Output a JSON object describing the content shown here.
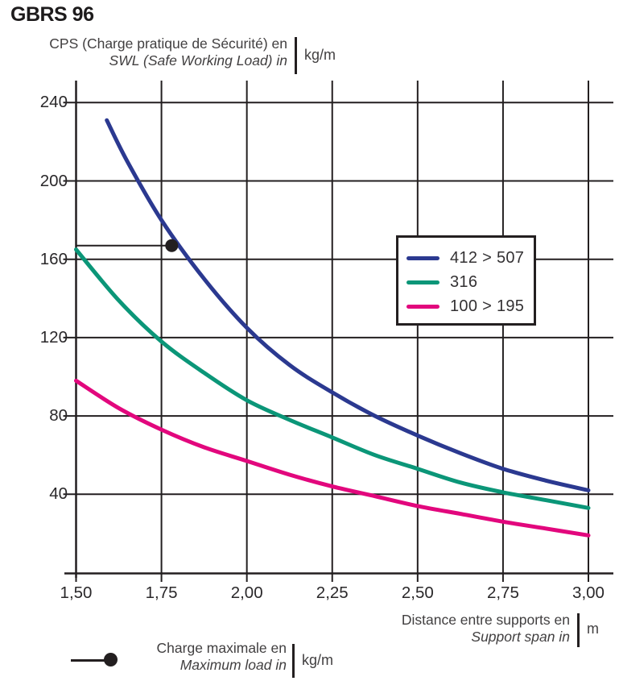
{
  "title": "GBRS 96",
  "y_axis_title": {
    "line1": "CPS (Charge pratique de Sécurité) en",
    "line2": "SWL (Safe Working Load) in",
    "unit": "kg/m"
  },
  "x_axis_title": {
    "line1": "Distance entre supports en",
    "line2": "Support span in",
    "unit": "m"
  },
  "marker_legend": {
    "line1": "Charge maximale en",
    "line2": "Maximum load in",
    "unit": "kg/m"
  },
  "colors": {
    "line_black": "#231f20",
    "series_blue": "#2b3990",
    "series_green": "#0b9678",
    "series_pink": "#e2077d"
  },
  "chart_data": {
    "type": "line",
    "title": "GBRS 96",
    "xlabel": "Distance entre supports en / Support span in (m)",
    "ylabel": "CPS (Charge pratique de Sécurité) / SWL (Safe Working Load) (kg/m)",
    "xlim": [
      1.5,
      3.0
    ],
    "ylim": [
      0,
      252
    ],
    "grid": true,
    "legend_position": "center-right",
    "x_ticks": [
      {
        "value": 1.5,
        "label": "1,50"
      },
      {
        "value": 1.75,
        "label": "1,75"
      },
      {
        "value": 2.0,
        "label": "2,00"
      },
      {
        "value": 2.25,
        "label": "2,25"
      },
      {
        "value": 2.5,
        "label": "2,50"
      },
      {
        "value": 2.75,
        "label": "2,75"
      },
      {
        "value": 3.0,
        "label": "3,00"
      }
    ],
    "y_ticks": [
      {
        "value": 240,
        "label": "240"
      },
      {
        "value": 200,
        "label": "200"
      },
      {
        "value": 160,
        "label": "160"
      },
      {
        "value": 120,
        "label": "120"
      },
      {
        "value": 80,
        "label": "80"
      },
      {
        "value": 40,
        "label": "40"
      }
    ],
    "series": [
      {
        "name": "412 > 507",
        "color": "#2b3990",
        "points": [
          [
            1.59,
            231
          ],
          [
            1.65,
            210
          ],
          [
            1.75,
            180
          ],
          [
            1.875,
            150
          ],
          [
            2.0,
            125
          ],
          [
            2.125,
            106
          ],
          [
            2.25,
            92
          ],
          [
            2.375,
            80
          ],
          [
            2.5,
            70
          ],
          [
            2.625,
            61
          ],
          [
            2.75,
            53
          ],
          [
            2.875,
            47
          ],
          [
            3.0,
            42
          ]
        ]
      },
      {
        "name": "316",
        "color": "#0b9678",
        "points": [
          [
            1.5,
            165
          ],
          [
            1.625,
            139
          ],
          [
            1.75,
            118
          ],
          [
            1.875,
            102
          ],
          [
            2.0,
            88
          ],
          [
            2.125,
            78
          ],
          [
            2.25,
            69
          ],
          [
            2.375,
            60
          ],
          [
            2.5,
            53
          ],
          [
            2.625,
            46
          ],
          [
            2.75,
            41
          ],
          [
            2.875,
            37
          ],
          [
            3.0,
            33
          ]
        ]
      },
      {
        "name": "100 > 195",
        "color": "#e2077d",
        "points": [
          [
            1.5,
            98
          ],
          [
            1.625,
            84
          ],
          [
            1.75,
            73
          ],
          [
            1.875,
            64
          ],
          [
            2.0,
            57
          ],
          [
            2.125,
            50
          ],
          [
            2.25,
            44
          ],
          [
            2.375,
            39
          ],
          [
            2.5,
            34
          ],
          [
            2.625,
            30
          ],
          [
            2.75,
            26
          ],
          [
            2.875,
            22.5
          ],
          [
            3.0,
            19
          ]
        ]
      }
    ],
    "marker_point": {
      "series": "412 > 507",
      "x": 1.78,
      "y": 167
    }
  }
}
